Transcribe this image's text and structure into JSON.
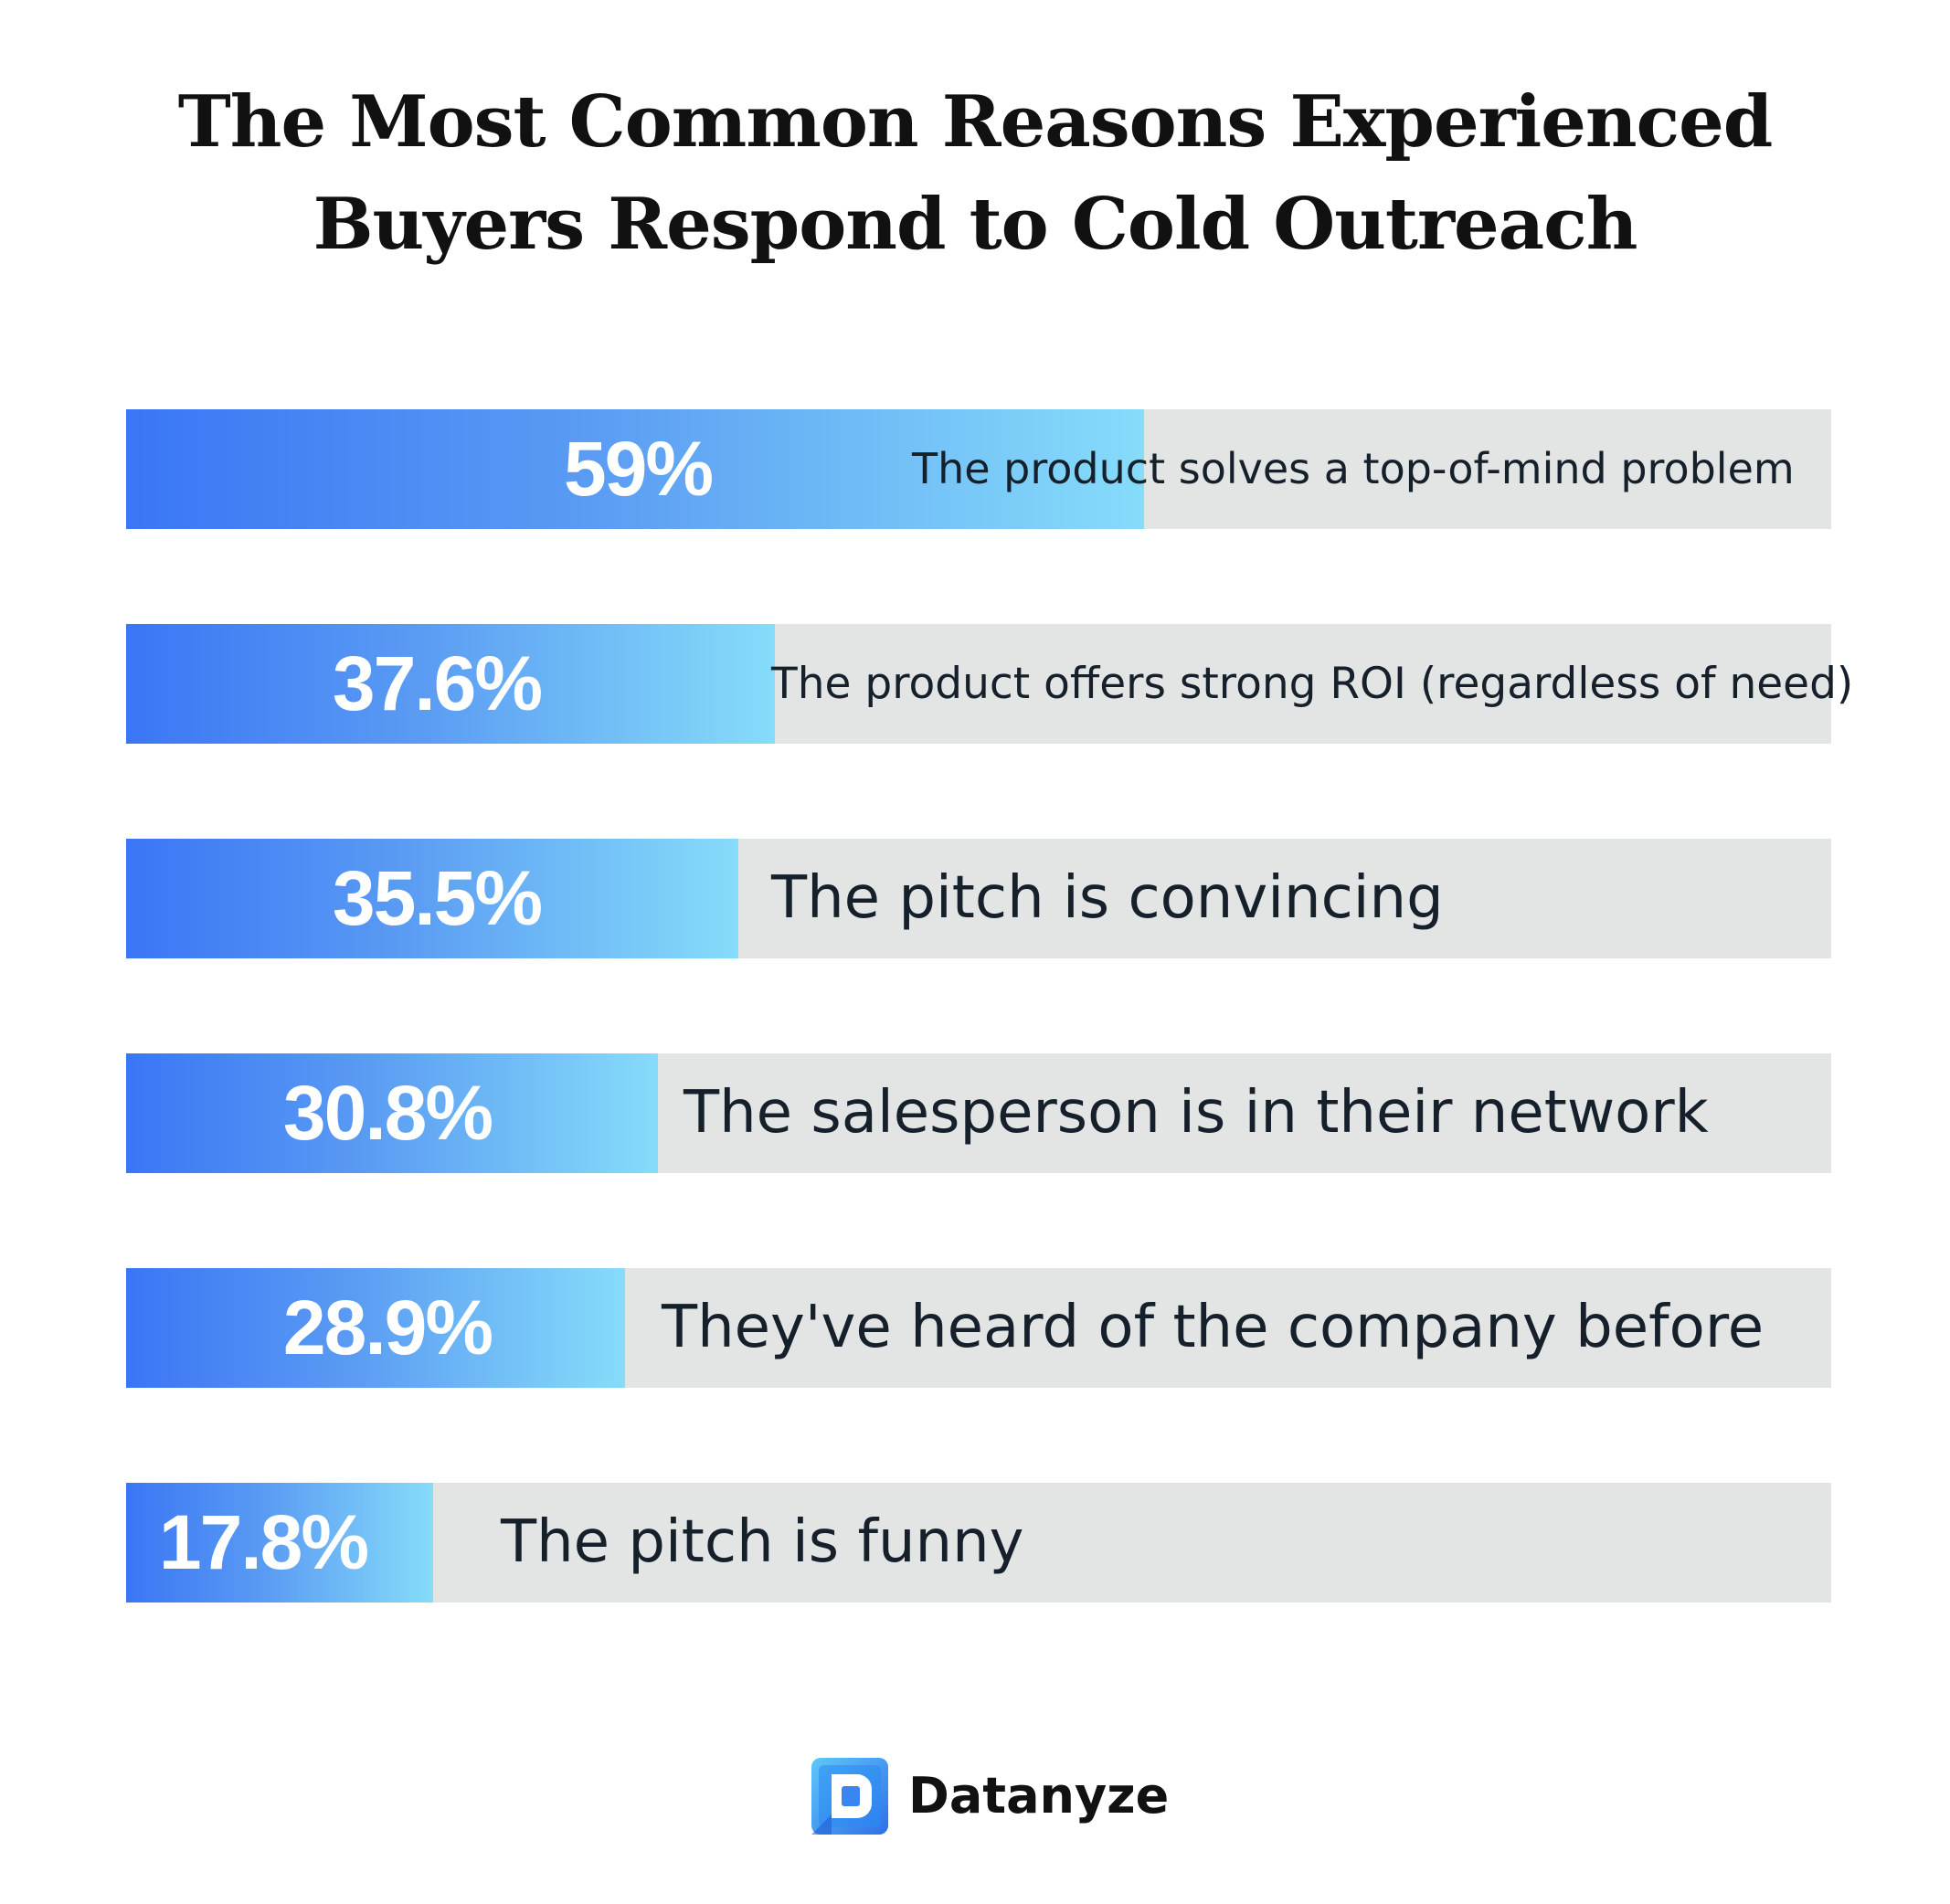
{
  "title_lines": [
    "The Most Common Reasons Experienced",
    "Buyers Respond to Cold Outreach"
  ],
  "brand": {
    "name": "Datanyze",
    "logo_icon": "datanyze-logo-icon"
  },
  "colors": {
    "bar_gradient_start": "#3a76f5",
    "bar_gradient_end": "#86dcfa",
    "track": "#e3e4e4",
    "value_text": "#ffffff",
    "label_text": "#15202b"
  },
  "chart_data": {
    "type": "bar",
    "orientation": "horizontal",
    "title": "The Most Common Reasons Experienced Buyers Respond to Cold Outreach",
    "xlim": [
      0,
      100
    ],
    "grid": false,
    "categories": [
      "The product solves a top-of-mind problem",
      "The product offers strong ROI (regardless of need)",
      "The pitch is convincing",
      "The salesperson is in their network",
      "They've heard of the company before",
      "The pitch is funny"
    ],
    "values": [
      59,
      37.6,
      35.5,
      30.8,
      28.9,
      17.8
    ],
    "value_labels": [
      "59%",
      "37.6%",
      "35.5%",
      "30.8%",
      "28.9%",
      "17.8%"
    ]
  }
}
